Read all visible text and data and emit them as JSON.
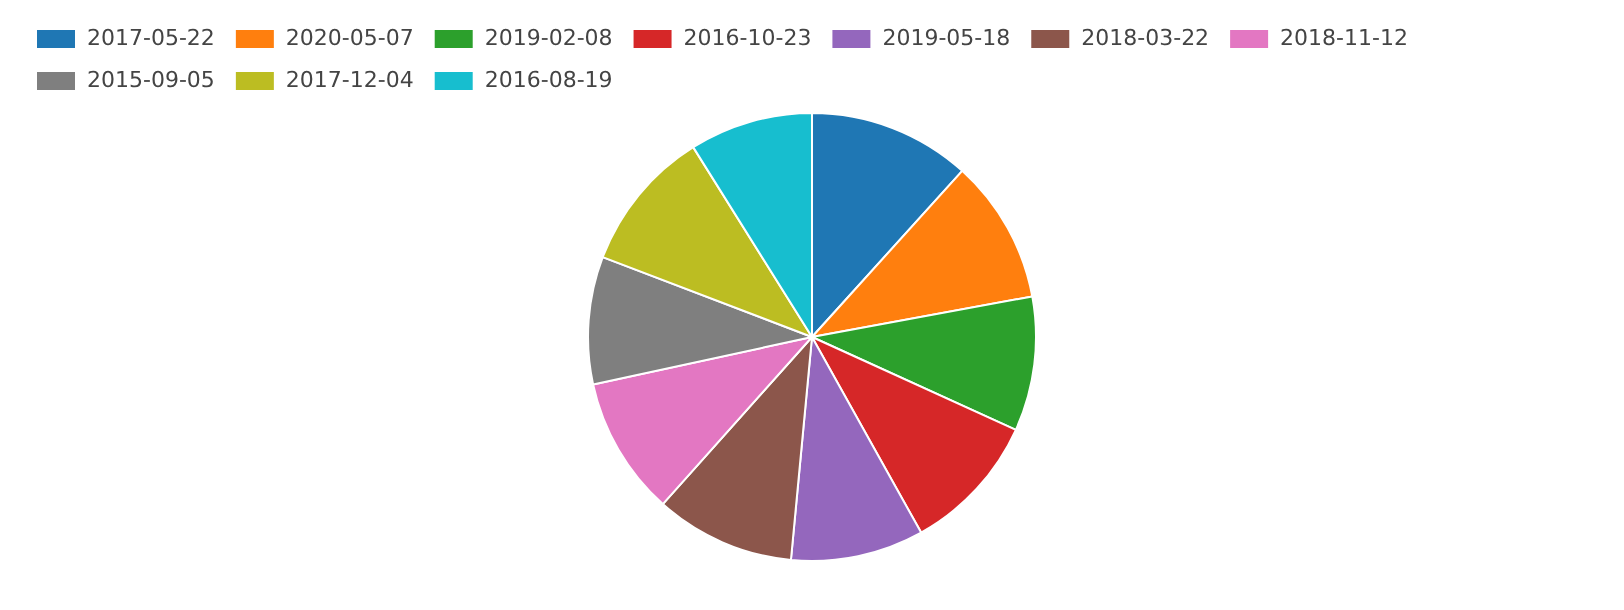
{
  "chart_data": {
    "type": "pie",
    "categories": [
      "2017-05-22",
      "2020-05-07",
      "2019-02-08",
      "2016-10-23",
      "2019-05-18",
      "2018-03-22",
      "2018-11-12",
      "2015-09-05",
      "2017-12-04",
      "2016-08-19"
    ],
    "values": [
      11.7,
      10.4,
      9.7,
      10.1,
      9.6,
      10.1,
      10.0,
      9.2,
      10.3,
      8.9
    ],
    "colors": [
      "#1f77b4",
      "#ff7f0e",
      "#2ca02c",
      "#d62728",
      "#9467bd",
      "#8c564b",
      "#e377c2",
      "#7f7f7f",
      "#bcbd22",
      "#17becf"
    ],
    "legend": "top left"
  }
}
